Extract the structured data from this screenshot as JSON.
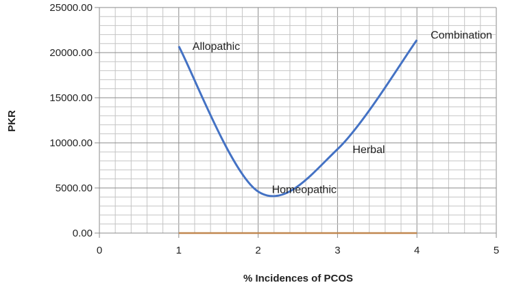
{
  "chart_data": {
    "type": "line",
    "title": "",
    "xlabel": "% Incidences of PCOS",
    "ylabel": "PKR",
    "xlim": [
      0,
      5
    ],
    "ylim": [
      0,
      25000
    ],
    "x_ticks": [
      "0",
      "1",
      "2",
      "3",
      "4",
      "5"
    ],
    "y_ticks": [
      "0.00",
      "5000.00",
      "10000.00",
      "15000.00",
      "20000.00",
      "25000.00"
    ],
    "grid": true,
    "smooth": true,
    "series": [
      {
        "color": "#4472c4",
        "x": [
          1,
          2,
          3,
          4
        ],
        "values": [
          20700,
          4600,
          9300,
          21400
        ],
        "point_labels": [
          "Allopathic",
          "Homeopathic",
          "Herbal",
          "Combination"
        ]
      },
      {
        "color": "#c0874f",
        "x": [
          1,
          2,
          3,
          4
        ],
        "values": [
          0,
          0,
          0,
          0
        ]
      }
    ]
  }
}
